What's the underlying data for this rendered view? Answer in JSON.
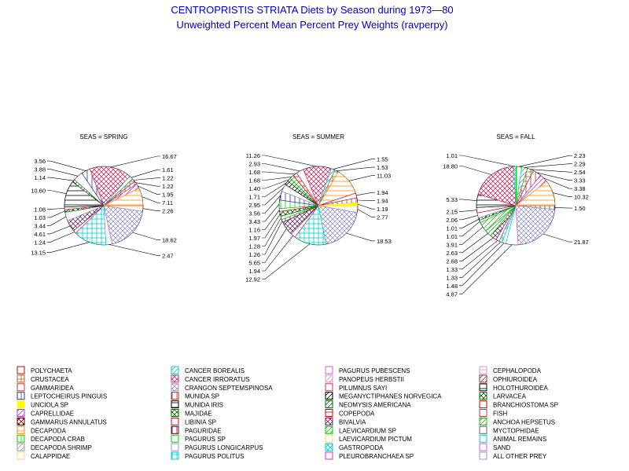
{
  "title": "CENTROPRISTIS STRIATA Diets by Season during 1973—80",
  "subtitle": "Unweighted Percent Mean Percent Prey  Weights (ravperpy)",
  "colors": {
    "title": "#0000cc",
    "text": "#000000",
    "line": "#000000"
  },
  "chart_data": {
    "type": "pie",
    "title": "CENTROPRISTIS STRIATA Diets by Season during 1973—80",
    "subtitle": "Unweighted Percent Mean Percent Prey  Weights (ravperpy)",
    "legend_position": "bottom",
    "categories": [
      {
        "name": "POLYCHAETA",
        "color": "#cc0000",
        "pattern": "none"
      },
      {
        "name": "CRUSTACEA",
        "color": "#996633",
        "pattern": "cross"
      },
      {
        "name": "GAMMARIDEA",
        "color": "#cc3333",
        "pattern": "none"
      },
      {
        "name": "LEPTOCHEIRUS PINGUIS",
        "color": "#333399",
        "pattern": "vert"
      },
      {
        "name": "UNCIOLA SP",
        "color": "#ffff00",
        "pattern": "solid"
      },
      {
        "name": "CAPRELLIDAE",
        "color": "#cc33cc",
        "pattern": "diag"
      },
      {
        "name": "GAMMARUS ANNULATUS",
        "color": "#660000",
        "pattern": "xcross"
      },
      {
        "name": "DECAPODA",
        "color": "#ff8800",
        "pattern": "horiz"
      },
      {
        "name": "DECAPODA CRAB",
        "color": "#00cc00",
        "pattern": "vert"
      },
      {
        "name": "DECAPODA SHRIMP",
        "color": "#999999",
        "pattern": "diag"
      },
      {
        "name": "CALAPPIDAE",
        "color": "#ffcc88",
        "pattern": "none"
      },
      {
        "name": "CANCER BOREALIS",
        "color": "#00cccc",
        "pattern": "diag"
      },
      {
        "name": "CANCER IRRORATUS",
        "color": "#cc3366",
        "pattern": "xcross"
      },
      {
        "name": "CRANGON SEPTEMSPINOSA",
        "color": "#9999cc",
        "pattern": "xcross"
      },
      {
        "name": "MUNIDA SP",
        "color": "#993333",
        "pattern": "vert"
      },
      {
        "name": "MUNIDA IRIS",
        "color": "#000000",
        "pattern": "horiz"
      },
      {
        "name": "MAJIDAE",
        "color": "#006600",
        "pattern": "xcross"
      },
      {
        "name": "LIBINIA SP",
        "color": "#cc0033",
        "pattern": "none"
      },
      {
        "name": "PAGURIDAE",
        "color": "#660033",
        "pattern": "vert"
      },
      {
        "name": "PAGURUS SP",
        "color": "#00cc00",
        "pattern": "none"
      },
      {
        "name": "PAGURUS LONGICARPUS",
        "color": "#9999cc",
        "pattern": "none"
      },
      {
        "name": "PAGURUS POLITUS",
        "color": "#00cccc",
        "pattern": "cross"
      },
      {
        "name": "PAGURUS PUBESCENS",
        "color": "#cc66cc",
        "pattern": "none"
      },
      {
        "name": "PANOPEUS HERBSTII",
        "color": "#cc99cc",
        "pattern": "diag"
      },
      {
        "name": "PILUMNUS SAYI",
        "color": "#cc3366",
        "pattern": "none"
      },
      {
        "name": "MEGANYCTIPHANES NORVEGICA",
        "color": "#000000",
        "pattern": "diag"
      },
      {
        "name": "NEOMYSIS AMERICANA",
        "color": "#006600",
        "pattern": "diag"
      },
      {
        "name": "COPEPODA",
        "color": "#cc0000",
        "pattern": "horiz"
      },
      {
        "name": "BIVALVIA",
        "color": "#663366",
        "pattern": "xcross"
      },
      {
        "name": "LAEVICARDIUM SP",
        "color": "#00cc00",
        "pattern": "diag"
      },
      {
        "name": "LAEVICARDIUM PICTUM",
        "color": "#ffcc88",
        "pattern": "none"
      },
      {
        "name": "GASTROPODA",
        "color": "#00cccc",
        "pattern": "xcross"
      },
      {
        "name": "PLEUROBRANCHAEA SP",
        "color": "#cc33cc",
        "pattern": "none"
      },
      {
        "name": "CEPHALOPODA",
        "color": "#cc99cc",
        "pattern": "horiz"
      },
      {
        "name": "OPHIUROIDEA",
        "color": "#993333",
        "pattern": "diag"
      },
      {
        "name": "HOLOTHUROIDEA",
        "color": "#000000",
        "pattern": "horiz"
      },
      {
        "name": "LARVACEA",
        "color": "#006600",
        "pattern": "xcross"
      },
      {
        "name": "BRANCHIOSTOMA SP",
        "color": "#cc0000",
        "pattern": "none"
      },
      {
        "name": "FISH",
        "color": "#cc3366",
        "pattern": "none"
      },
      {
        "name": "ANCHOA HEPSETUS",
        "color": "#00cc00",
        "pattern": "diag"
      },
      {
        "name": "MYCTOPHIDAE",
        "color": "#666666",
        "pattern": "none"
      },
      {
        "name": "ANIMAL REMAINS",
        "color": "#00cccc",
        "pattern": "none"
      },
      {
        "name": "SAND",
        "color": "#cc66cc",
        "pattern": "none"
      },
      {
        "name": "ALL OTHER PREY",
        "color": "#9999cc",
        "pattern": "none"
      }
    ],
    "pies": [
      {
        "label": "SEAS = SPRING",
        "slices": [
          {
            "value": 2.26,
            "label": "2.26",
            "cat": 0
          },
          {
            "value": 18.62,
            "label": "18.62",
            "cat": 13
          },
          {
            "value": 2.47,
            "label": "2.47",
            "cat": 22
          },
          {
            "value": 13.15,
            "label": "13.15",
            "cat": 21
          },
          {
            "value": 1.24,
            "label": "1.24",
            "cat": 24
          },
          {
            "value": 4.61,
            "label": "4.61",
            "cat": 28
          },
          {
            "value": 3.44,
            "label": "3.44",
            "cat": 20
          },
          {
            "value": 1.03,
            "label": "1.03",
            "cat": 16
          },
          {
            "value": 1.08,
            "label": "1.08",
            "cat": 17
          },
          {
            "value": 10.6,
            "label": "10.60",
            "cat": 15
          },
          {
            "value": 1.14,
            "label": "1.14",
            "cat": 36
          },
          {
            "value": 3.88,
            "label": "3.88",
            "cat": 40
          },
          {
            "value": 3.56,
            "label": "3.56",
            "cat": 3
          },
          {
            "value": 16.67,
            "label": "16.67",
            "cat": 12
          },
          {
            "value": 1.61,
            "label": "1.61",
            "cat": 11
          },
          {
            "value": 1.22,
            "label": "1.22",
            "cat": 1
          },
          {
            "value": 1.22,
            "label": "1.22",
            "cat": 14
          },
          {
            "value": 1.95,
            "label": "1.95",
            "cat": 5
          },
          {
            "value": 7.11,
            "label": "7.11",
            "cat": 7
          }
        ]
      },
      {
        "label": "SEAS = SUMMER",
        "slices": [
          {
            "value": 2.77,
            "label": "2.77",
            "cat": 0
          },
          {
            "value": 18.53,
            "label": "18.53",
            "cat": 13
          },
          {
            "value": 12.92,
            "label": "12.92",
            "cat": 21
          },
          {
            "value": 1.94,
            "label": "1.94",
            "cat": 24
          },
          {
            "value": 5.65,
            "label": "5.65",
            "cat": 28
          },
          {
            "value": 1.26,
            "label": "1.26",
            "cat": 18
          },
          {
            "value": 1.28,
            "label": "1.28",
            "cat": 19
          },
          {
            "value": 1.97,
            "label": "1.97",
            "cat": 16
          },
          {
            "value": 1.16,
            "label": "1.16",
            "cat": 17
          },
          {
            "value": 3.43,
            "label": "3.43",
            "cat": 8
          },
          {
            "value": 3.56,
            "label": "3.56",
            "cat": 3
          },
          {
            "value": 2.95,
            "label": "2.95",
            "cat": 20
          },
          {
            "value": 1.71,
            "label": "1.71",
            "cat": 25
          },
          {
            "value": 1.4,
            "label": "1.40",
            "cat": 26
          },
          {
            "value": 1.68,
            "label": "1.68",
            "cat": 29
          },
          {
            "value": 1.68,
            "label": "1.68",
            "cat": 27
          },
          {
            "value": 2.93,
            "label": "2.93",
            "cat": 38
          },
          {
            "value": 11.26,
            "label": "11.26",
            "cat": 12
          },
          {
            "value": 1.55,
            "label": "1.55",
            "cat": 11
          },
          {
            "value": 1.53,
            "label": "1.53",
            "cat": 1
          },
          {
            "value": 11.03,
            "label": "11.03",
            "cat": 7
          },
          {
            "value": 1.94,
            "label": "1.94",
            "cat": 17
          },
          {
            "value": 1.94,
            "label": "1.94",
            "cat": 14
          },
          {
            "value": 1.19,
            "label": "1.19",
            "cat": 4
          }
        ]
      },
      {
        "label": "SEAS = FALL",
        "slices": [
          {
            "value": 1.5,
            "label": "1.50",
            "cat": 3
          },
          {
            "value": 21.87,
            "label": "21.87",
            "cat": 13
          },
          {
            "value": 4.87,
            "label": "4.87",
            "cat": 42
          },
          {
            "value": 1.48,
            "label": "1.48",
            "cat": 41
          },
          {
            "value": 1.33,
            "label": "1.33",
            "cat": 21
          },
          {
            "value": 1.33,
            "label": "1.33",
            "cat": 24
          },
          {
            "value": 2.68,
            "label": "2.68",
            "cat": 28
          },
          {
            "value": 2.63,
            "label": "2.63",
            "cat": 39
          },
          {
            "value": 3.91,
            "label": "3.91",
            "cat": 29
          },
          {
            "value": 1.01,
            "label": "1.01",
            "cat": 19
          },
          {
            "value": 1.01,
            "label": "1.01",
            "cat": 16
          },
          {
            "value": 2.06,
            "label": "2.06",
            "cat": 20
          },
          {
            "value": 2.15,
            "label": "2.15",
            "cat": 17
          },
          {
            "value": 5.33,
            "label": "5.33",
            "cat": 15
          },
          {
            "value": 18.8,
            "label": "18.80",
            "cat": 12
          },
          {
            "value": 1.01,
            "label": "1.01",
            "cat": 31
          },
          {
            "value": 2.23,
            "label": "2.23",
            "cat": 8
          },
          {
            "value": 2.29,
            "label": "2.29",
            "cat": 11
          },
          {
            "value": 2.54,
            "label": "2.54",
            "cat": 1
          },
          {
            "value": 3.33,
            "label": "3.33",
            "cat": 14
          },
          {
            "value": 3.38,
            "label": "3.38",
            "cat": 5
          },
          {
            "value": 10.32,
            "label": "10.32",
            "cat": 7
          }
        ]
      }
    ]
  }
}
